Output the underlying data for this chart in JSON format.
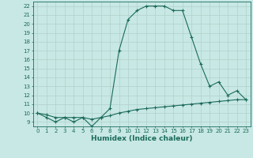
{
  "line1_x": [
    0,
    1,
    2,
    3,
    4,
    5,
    6,
    7,
    8,
    9,
    10,
    11,
    12,
    13,
    14,
    15,
    16,
    17,
    18,
    19,
    20,
    21,
    22,
    23
  ],
  "line1_y": [
    10.0,
    9.5,
    9.0,
    9.5,
    9.0,
    9.5,
    8.5,
    9.5,
    10.5,
    17.0,
    20.5,
    21.5,
    22.0,
    22.0,
    22.0,
    21.5,
    21.5,
    18.5,
    15.5,
    13.0,
    13.5,
    12.0,
    12.5,
    11.5
  ],
  "line2_x": [
    0,
    1,
    2,
    3,
    4,
    5,
    6,
    7,
    8,
    9,
    10,
    11,
    12,
    13,
    14,
    15,
    16,
    17,
    18,
    19,
    20,
    21,
    22,
    23
  ],
  "line2_y": [
    10.0,
    9.8,
    9.5,
    9.5,
    9.5,
    9.5,
    9.3,
    9.5,
    9.7,
    10.0,
    10.2,
    10.4,
    10.5,
    10.6,
    10.7,
    10.8,
    10.9,
    11.0,
    11.1,
    11.2,
    11.3,
    11.4,
    11.5,
    11.5
  ],
  "line_color": "#1a6b5a",
  "bg_color": "#c8e8e5",
  "grid_color": "#b0d0cc",
  "xlabel": "Humidex (Indice chaleur)",
  "xlim": [
    -0.5,
    23.5
  ],
  "ylim": [
    8.5,
    22.5
  ],
  "xticks": [
    0,
    1,
    2,
    3,
    4,
    5,
    6,
    7,
    8,
    9,
    10,
    11,
    12,
    13,
    14,
    15,
    16,
    17,
    18,
    19,
    20,
    21,
    22,
    23
  ],
  "yticks": [
    9,
    10,
    11,
    12,
    13,
    14,
    15,
    16,
    17,
    18,
    19,
    20,
    21,
    22
  ],
  "tick_fontsize": 5.0,
  "xlabel_fontsize": 6.5,
  "marker": "+",
  "markersize": 3.5,
  "linewidth": 0.8
}
